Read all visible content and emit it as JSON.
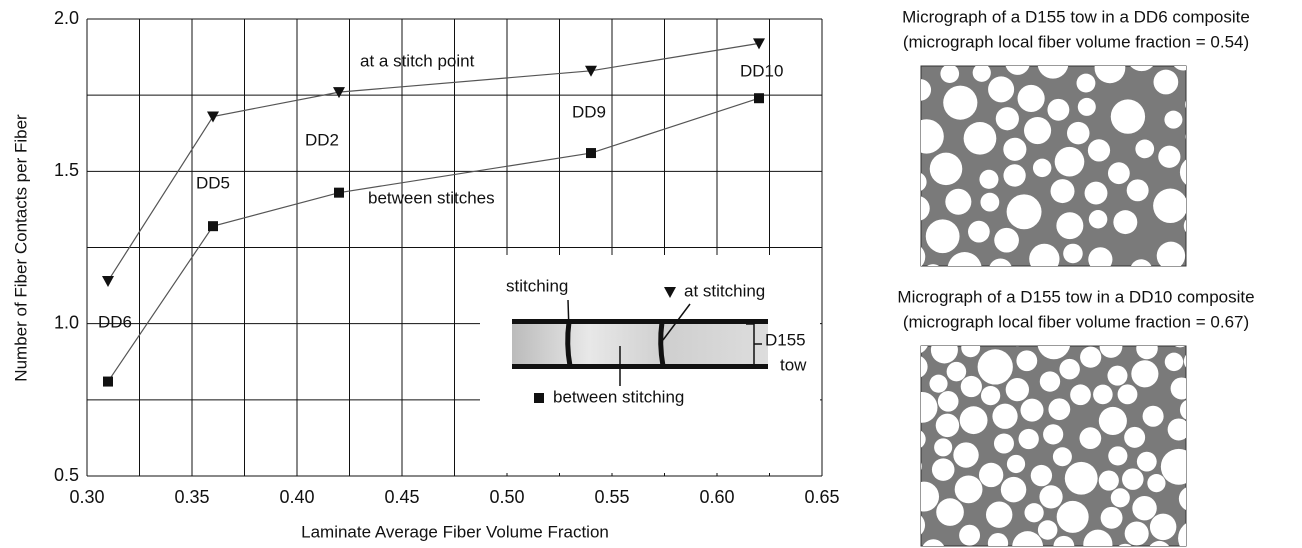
{
  "chart_data": {
    "type": "line",
    "x_label": "Laminate Average Fiber Volume Fraction",
    "y_label": "Number of Fiber Contacts per Fiber",
    "x": [
      0.31,
      0.36,
      0.42,
      0.54,
      0.62
    ],
    "series": [
      {
        "name": "at stitching",
        "color": "#111111",
        "marker": "triangle-down",
        "values": [
          1.14,
          1.68,
          1.76,
          1.83,
          1.92
        ]
      },
      {
        "name": "between stitching",
        "color": "#111111",
        "marker": "square",
        "values": [
          0.81,
          1.32,
          1.43,
          1.56,
          1.74
        ]
      }
    ],
    "xlim": [
      0.3,
      0.65
    ],
    "ylim": [
      0.5,
      2.0
    ],
    "xticks": [
      {
        "value": 0.3,
        "label": "0.30"
      },
      {
        "value": 0.35,
        "label": "0.35"
      },
      {
        "value": 0.4,
        "label": "0.40"
      },
      {
        "value": 0.45,
        "label": "0.45"
      },
      {
        "value": 0.5,
        "label": "0.50"
      },
      {
        "value": 0.55,
        "label": "0.55"
      },
      {
        "value": 0.6,
        "label": "0.60"
      },
      {
        "value": 0.65,
        "label": "0.65"
      }
    ],
    "yticks": [
      0.5,
      {
        "value": 1.0,
        "label": "1.0"
      },
      1.5,
      {
        "value": 2.0,
        "label": "2.0"
      }
    ],
    "x_minor_ticks": [
      0.325,
      0.375,
      0.425,
      0.475,
      0.525,
      0.575,
      0.625
    ],
    "y_minor_ticks": [
      0.75,
      1.25,
      1.75
    ],
    "grid": true,
    "annotations": [
      "DD6",
      "DD5",
      "DD2",
      "DD9",
      "DD10",
      "at a stitch point",
      "between stitches"
    ],
    "inset": {
      "stitching": "stitching",
      "tow_label": [
        "D155",
        "tow"
      ]
    },
    "micrographs": [
      {
        "title": [
          "Micrograph of a D155 tow in a DD6 composite",
          "(micrograph local fiber volume fraction = 0.54)"
        ]
      },
      {
        "title": [
          "Micrograph of a D155 tow in a DD10 composite",
          "(micrograph local fiber volume fraction = 0.67)"
        ]
      }
    ]
  }
}
